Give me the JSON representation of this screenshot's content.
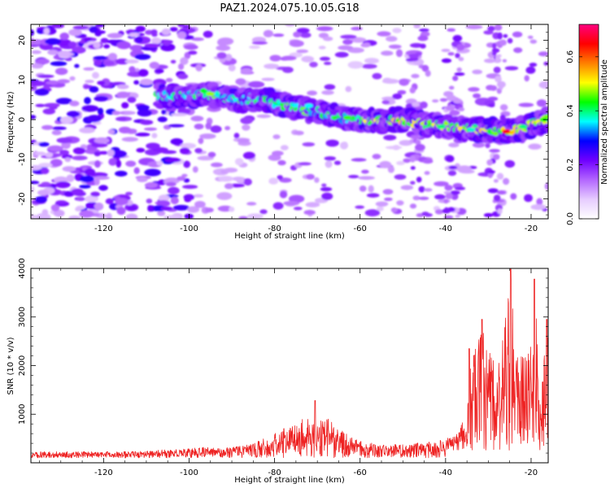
{
  "title": "PAZ1.2024.075.10.05.G18",
  "chart_data": [
    {
      "type": "heatmap",
      "xlabel": "Height of straight line (km)",
      "ylabel": "Frequency (Hz)",
      "xlim": [
        -137,
        -16
      ],
      "ylim": [
        -25,
        24
      ],
      "xticks": [
        -120,
        -100,
        -80,
        -60,
        -40,
        -20
      ],
      "yticks": [
        -20,
        -10,
        0,
        10,
        20
      ],
      "colorbar": {
        "label": "Normalized spectral amplitude",
        "range": [
          0.0,
          0.72
        ],
        "ticks": [
          0.0,
          0.2,
          0.4,
          0.6
        ],
        "colors": [
          "#ffffff",
          "#e6ccff",
          "#b366ff",
          "#7000ff",
          "#0000ff",
          "#00ffff",
          "#00ff00",
          "#ffff00",
          "#ff8000",
          "#ff0000",
          "#ff0080"
        ]
      },
      "ridge": [
        {
          "x": -105,
          "f": 6.0
        },
        {
          "x": -100,
          "f": 6.0
        },
        {
          "x": -95,
          "f": 6.5
        },
        {
          "x": -90,
          "f": 5.0
        },
        {
          "x": -85,
          "f": 5.0
        },
        {
          "x": -80,
          "f": 4.5
        },
        {
          "x": -75,
          "f": 3.0
        },
        {
          "x": -70,
          "f": 2.0
        },
        {
          "x": -65,
          "f": 0.5
        },
        {
          "x": -60,
          "f": 0.0
        },
        {
          "x": -55,
          "f": -0.5
        },
        {
          "x": -50,
          "f": 0.0
        },
        {
          "x": -45,
          "f": -1.0
        },
        {
          "x": -40,
          "f": -1.5
        },
        {
          "x": -35,
          "f": -2.5
        },
        {
          "x": -30,
          "f": -2.5
        },
        {
          "x": -25,
          "f": -3.0
        },
        {
          "x": -20,
          "f": -1.5
        },
        {
          "x": -16,
          "f": 0.0
        }
      ]
    },
    {
      "type": "line",
      "xlabel": "Height of straight line (km)",
      "ylabel": "SNR (10 * v/v)",
      "xlim": [
        -137,
        -16
      ],
      "ylim": [
        0,
        4000
      ],
      "xticks": [
        -120,
        -100,
        -80,
        -60,
        -40,
        -20
      ],
      "yticks": [
        1000,
        2000,
        3000,
        4000
      ],
      "color": "#ee2222",
      "envelope": [
        {
          "x": -137,
          "snr": 200
        },
        {
          "x": -120,
          "snr": 200
        },
        {
          "x": -110,
          "snr": 210
        },
        {
          "x": -100,
          "snr": 280
        },
        {
          "x": -90,
          "snr": 320
        },
        {
          "x": -85,
          "snr": 400
        },
        {
          "x": -80,
          "snr": 600
        },
        {
          "x": -75,
          "snr": 850
        },
        {
          "x": -72,
          "snr": 950
        },
        {
          "x": -68,
          "snr": 950
        },
        {
          "x": -65,
          "snr": 700
        },
        {
          "x": -60,
          "snr": 450
        },
        {
          "x": -55,
          "snr": 380
        },
        {
          "x": -50,
          "snr": 380
        },
        {
          "x": -45,
          "snr": 420
        },
        {
          "x": -40,
          "snr": 500
        },
        {
          "x": -37,
          "snr": 600
        },
        {
          "x": -35,
          "snr": 1200
        },
        {
          "x": -34,
          "snr": 2200
        },
        {
          "x": -31,
          "snr": 2900
        },
        {
          "x": -28,
          "snr": 1800
        },
        {
          "x": -25,
          "snr": 3900
        },
        {
          "x": -23,
          "snr": 2200
        },
        {
          "x": -20,
          "snr": 2400
        },
        {
          "x": -19,
          "snr": 3700
        },
        {
          "x": -18,
          "snr": 1400
        },
        {
          "x": -16,
          "snr": 2900
        }
      ],
      "peaks": [
        {
          "x": -34.5,
          "snr": 2350
        },
        {
          "x": -31.5,
          "snr": 2950
        },
        {
          "x": -24.8,
          "snr": 4000
        },
        {
          "x": -19.2,
          "snr": 3780
        },
        {
          "x": -16.3,
          "snr": 2950
        },
        {
          "x": -70.5,
          "snr": 1280
        }
      ]
    }
  ]
}
